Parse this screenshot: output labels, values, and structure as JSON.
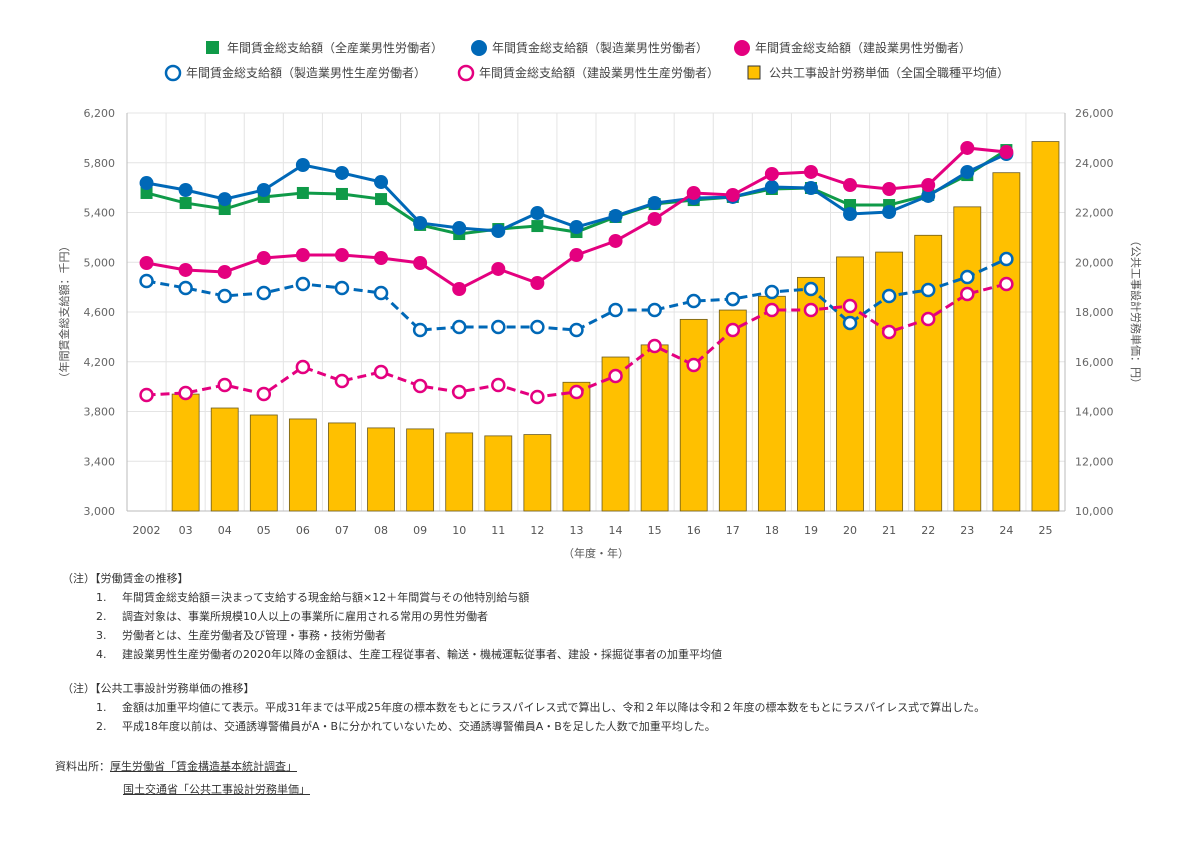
{
  "chart_data": {
    "type": "bar+line",
    "categories": [
      "2002",
      "03",
      "04",
      "05",
      "06",
      "07",
      "08",
      "09",
      "10",
      "11",
      "12",
      "13",
      "14",
      "15",
      "16",
      "17",
      "18",
      "19",
      "20",
      "21",
      "22",
      "23",
      "24",
      "25"
    ],
    "xlabel": "（年度・年）",
    "ylabel_left": "（年間賃金総支給額：千円）",
    "ylabel_right": "（公共工事設計労務単価：円）",
    "ylim_left": [
      3000,
      6200
    ],
    "yticks_left": [
      "3,000",
      "3,400",
      "3,800",
      "4,200",
      "4,600",
      "5,000",
      "5,400",
      "5,800",
      "6,200"
    ],
    "ylim_right": [
      10000,
      26000
    ],
    "yticks_right": [
      "10,000",
      "12,000",
      "14,000",
      "16,000",
      "18,000",
      "20,000",
      "22,000",
      "24,000",
      "26,000"
    ],
    "grid": true,
    "legend_position": "top",
    "series": [
      {
        "name": "年間賃金総支給額（全産業男性労働者）",
        "kind": "line",
        "marker": "square",
        "axis": "left",
        "color": "#0f9a48",
        "dashed": false,
        "values": [
          5557,
          5476,
          5428,
          5525,
          5557,
          5549,
          5508,
          5300,
          5227,
          5267,
          5291,
          5243,
          5364,
          5468,
          5500,
          5525,
          5589,
          5597,
          5460,
          5460,
          5541,
          5701,
          5902,
          null
        ]
      },
      {
        "name": "年間賃金総支給額（製造業男性労働者）",
        "kind": "line",
        "marker": "circle",
        "axis": "left",
        "color": "#0068b7",
        "dashed": false,
        "values": [
          5637,
          5581,
          5508,
          5581,
          5782,
          5718,
          5645,
          5316,
          5275,
          5251,
          5396,
          5283,
          5372,
          5476,
          5516,
          5525,
          5605,
          5597,
          5388,
          5404,
          5533,
          5726,
          5870,
          null
        ]
      },
      {
        "name": "年間賃金総支給額（建設業男性労働者）",
        "kind": "line",
        "marker": "circle",
        "axis": "left",
        "color": "#e4007f",
        "dashed": false,
        "values": [
          4994,
          4938,
          4922,
          5034,
          5058,
          5058,
          5034,
          4994,
          4785,
          4946,
          4833,
          5058,
          5171,
          5348,
          5557,
          5541,
          5710,
          5726,
          5621,
          5589,
          5621,
          5919,
          5886,
          null
        ]
      },
      {
        "name": "年間賃金総支給額（製造業男性生産労働者）",
        "kind": "line",
        "marker": "circle-open",
        "axis": "left",
        "color": "#0068b7",
        "dashed": true,
        "values": [
          4849,
          4793,
          4729,
          4753,
          4825,
          4793,
          4753,
          4455,
          4479,
          4479,
          4479,
          4455,
          4616,
          4616,
          4688,
          4704,
          4761,
          4785,
          4512,
          4729,
          4777,
          4881,
          5026,
          null
        ]
      },
      {
        "name": "年間賃金総支給額（建設業男性生産労働者）",
        "kind": "line",
        "marker": "circle-open",
        "axis": "left",
        "color": "#e4007f",
        "dashed": true,
        "values": [
          3933,
          3949,
          4013,
          3941,
          4158,
          4045,
          4118,
          4005,
          3957,
          4013,
          3917,
          3957,
          4085,
          4327,
          4174,
          4455,
          4616,
          4616,
          4648,
          4439,
          4544,
          4745,
          4825,
          null
        ]
      },
      {
        "name": "公共工事設計労務単価（全国全職種平均値）",
        "kind": "bar",
        "axis": "right",
        "color": "#ffc000",
        "values": [
          null,
          14700,
          14140,
          13860,
          13700,
          13540,
          13340,
          13300,
          13140,
          13020,
          13072,
          15175,
          16190,
          16678,
          17704,
          18078,
          18632,
          19392,
          20214,
          20409,
          21084,
          22227,
          23600,
          24852
        ]
      }
    ]
  },
  "notes": {
    "wage_heading": "（注）【労働賃金の推移】",
    "wage_items": [
      {
        "num": "1.",
        "text": "年間賃金総支給額＝決まって支給する現金給与額×12＋年間賞与その他特別給与額"
      },
      {
        "num": "2.",
        "text": "調査対象は、事業所規模10人以上の事業所に雇用される常用の男性労働者"
      },
      {
        "num": "3.",
        "text": "労働者とは、生産労働者及び管理・事務・技術労働者"
      },
      {
        "num": "4.",
        "text": "建設業男性生産労働者の2020年以降の金額は、生産工程従事者、輸送・機械運転従事者、建設・採掘従事者の加重平均値"
      }
    ],
    "price_heading": "（注）【公共工事設計労務単価の推移】",
    "price_items": [
      {
        "num": "1.",
        "text": "金額は加重平均値にて表示。平成31年までは平成25年度の標本数をもとにラスパイレス式で算出し、令和２年以降は令和２年度の標本数をもとにラスパイレス式で算出した。"
      },
      {
        "num": "2.",
        "text": "平成18年度以前は、交通誘導警備員がA・Bに分かれていないため、交通誘導警備員A・Bを足した人数で加重平均した。"
      }
    ]
  },
  "source": {
    "label": "資料出所：",
    "links": [
      "厚生労働省「賃金構造基本統計調査」",
      "国土交通省「公共工事設計労務単価」"
    ]
  }
}
